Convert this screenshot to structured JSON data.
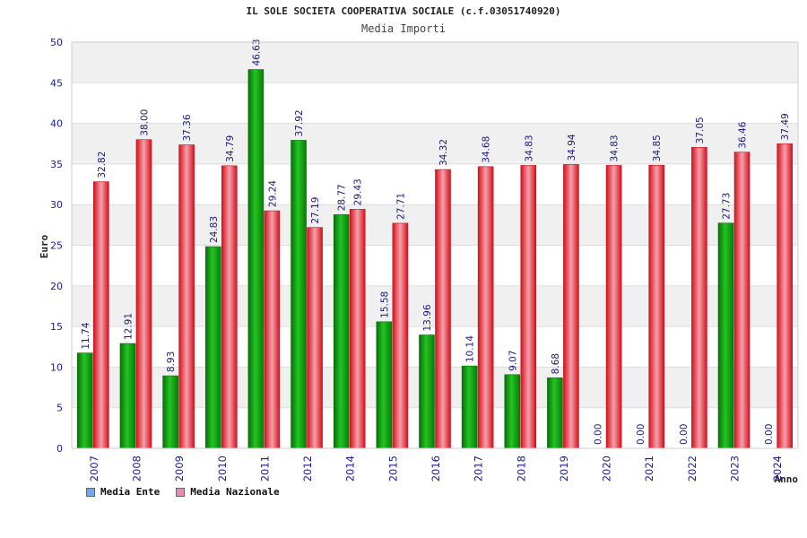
{
  "chart_data": {
    "type": "bar",
    "title": "IL SOLE SOCIETA COOPERATIVA SOCIALE (c.f.03051740920)",
    "subtitle": "Media Importi",
    "ylabel": "Euro",
    "xlabel": "Anno",
    "ylim": [
      0,
      50
    ],
    "yticks": [
      0,
      5,
      10,
      15,
      20,
      25,
      30,
      35,
      40,
      45,
      50
    ],
    "categories": [
      "2007",
      "2008",
      "2009",
      "2010",
      "2011",
      "2012",
      "2014",
      "2015",
      "2016",
      "2017",
      "2018",
      "2019",
      "2020",
      "2021",
      "2022",
      "2023",
      "2024"
    ],
    "series": [
      {
        "name": "Media Ente",
        "color": "#1aa01a",
        "legend_color": "#6ea8e8",
        "values": [
          11.74,
          12.91,
          8.93,
          24.83,
          46.63,
          37.92,
          28.77,
          15.58,
          13.96,
          10.14,
          9.07,
          8.68,
          0.0,
          0.0,
          0.0,
          27.73,
          0.0
        ],
        "labels": [
          "11.74",
          "12.91",
          "8.93",
          "24.83",
          "46.63",
          "37.92",
          "28.77",
          "15.58",
          "13.96",
          "10.14",
          "9.07",
          "8.68",
          "0.00",
          "0.00",
          "0.00",
          "27.73",
          "0.00"
        ]
      },
      {
        "name": "Media Nazionale",
        "color": "#e0202e",
        "legend_color": "#e28cba",
        "values": [
          32.82,
          38.0,
          37.36,
          34.79,
          29.24,
          27.19,
          29.43,
          27.71,
          34.32,
          34.68,
          34.83,
          34.94,
          34.83,
          34.85,
          37.05,
          36.46,
          37.49
        ],
        "labels": [
          "32.82",
          "38.00",
          "37.36",
          "34.79",
          "29.24",
          "27.19",
          "29.43",
          "27.71",
          "34.32",
          "34.68",
          "34.83",
          "34.94",
          "34.83",
          "34.85",
          "37.05",
          "36.46",
          "37.49"
        ]
      }
    ],
    "grid": true,
    "legend_position": "bottom-left"
  }
}
